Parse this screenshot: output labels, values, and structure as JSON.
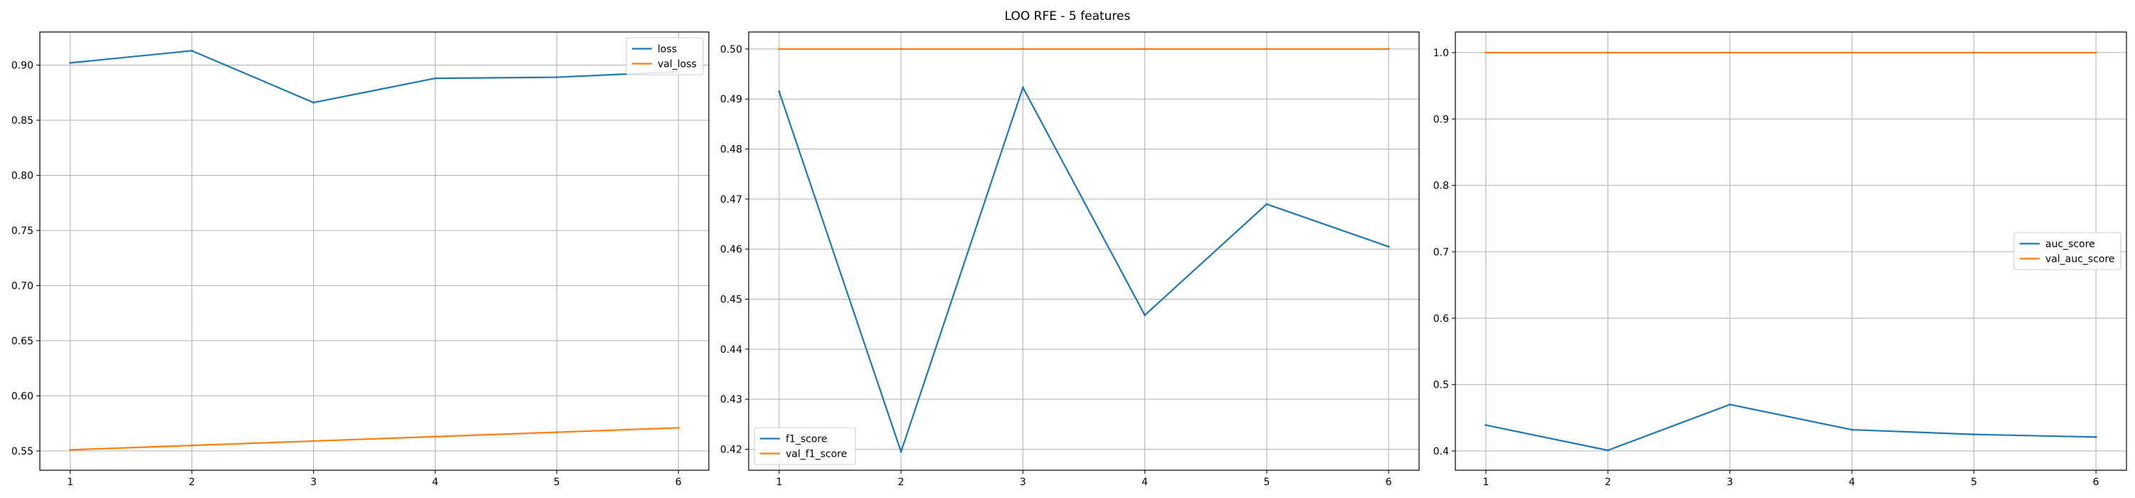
{
  "figure": {
    "title": "LOO RFE - 5 features"
  },
  "colors": {
    "series1": "#1f77b4",
    "series2": "#ff7f0e",
    "grid": "#b0b0b0"
  },
  "chart_data": [
    {
      "type": "line",
      "x": [
        1,
        2,
        3,
        4,
        5,
        6
      ],
      "xticks": [
        1,
        2,
        3,
        4,
        5,
        6
      ],
      "xlim": [
        0.75,
        6.25
      ],
      "ylim": [
        0.5325,
        0.93
      ],
      "yticks": [
        "0.55",
        "0.60",
        "0.65",
        "0.70",
        "0.75",
        "0.80",
        "0.85",
        "0.90"
      ],
      "grid": true,
      "legend_loc": "upper right",
      "series": [
        {
          "name": "loss",
          "color": "#1f77b4",
          "values": [
            0.902,
            0.913,
            0.866,
            0.888,
            0.889,
            0.894
          ]
        },
        {
          "name": "val_loss",
          "color": "#ff7f0e",
          "values": [
            0.551,
            0.555,
            0.559,
            0.563,
            0.567,
            0.571
          ]
        }
      ]
    },
    {
      "type": "line",
      "x": [
        1,
        2,
        3,
        4,
        5,
        6
      ],
      "xticks": [
        1,
        2,
        3,
        4,
        5,
        6
      ],
      "xlim": [
        0.75,
        6.25
      ],
      "ylim": [
        0.4158,
        0.5034
      ],
      "yticks": [
        "0.42",
        "0.43",
        "0.44",
        "0.45",
        "0.46",
        "0.47",
        "0.48",
        "0.49",
        "0.50"
      ],
      "grid": true,
      "legend_loc": "lower left",
      "series": [
        {
          "name": "f1_score",
          "color": "#1f77b4",
          "values": [
            0.4915,
            0.4195,
            0.4923,
            0.4468,
            0.469,
            0.4605
          ]
        },
        {
          "name": "val_f1_score",
          "color": "#ff7f0e",
          "values": [
            0.5,
            0.5,
            0.5,
            0.5,
            0.5,
            0.5
          ]
        }
      ]
    },
    {
      "type": "line",
      "x": [
        1,
        2,
        3,
        4,
        5,
        6
      ],
      "xticks": [
        1,
        2,
        3,
        4,
        5,
        6
      ],
      "xlim": [
        0.75,
        6.25
      ],
      "ylim": [
        0.371,
        1.031
      ],
      "yticks": [
        "0.4",
        "0.5",
        "0.6",
        "0.7",
        "0.8",
        "0.9",
        "1.0"
      ],
      "grid": true,
      "legend_loc": "center right",
      "series": [
        {
          "name": "auc_score",
          "color": "#1f77b4",
          "values": [
            0.439,
            0.401,
            0.47,
            0.432,
            0.425,
            0.421
          ]
        },
        {
          "name": "val_auc_score",
          "color": "#ff7f0e",
          "values": [
            1.0,
            1.0,
            1.0,
            1.0,
            1.0,
            1.0
          ]
        }
      ]
    }
  ]
}
